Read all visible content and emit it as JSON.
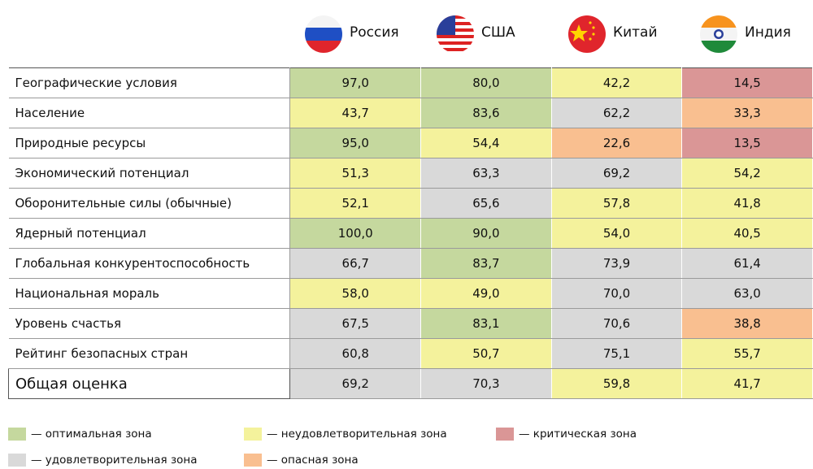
{
  "header": {
    "countries": [
      "Россия",
      "США",
      "Китай",
      "Индия"
    ]
  },
  "table": {
    "rows": [
      {
        "label": "Географические условия",
        "cells": [
          {
            "text": "97,0",
            "color": "#c5d89e"
          },
          {
            "text": "80,0",
            "color": "#c5d89e"
          },
          {
            "text": "42,2",
            "color": "#f4f29c"
          },
          {
            "text": "14,5",
            "color": "#da9696"
          }
        ]
      },
      {
        "label": "Население",
        "cells": [
          {
            "text": "43,7",
            "color": "#f4f29c"
          },
          {
            "text": "83,6",
            "color": "#c5d89e"
          },
          {
            "text": "62,2",
            "color": "#d9d9d9"
          },
          {
            "text": "33,3",
            "color": "#f9bf90"
          }
        ]
      },
      {
        "label": "Природные ресурсы",
        "cells": [
          {
            "text": "95,0",
            "color": "#c5d89e"
          },
          {
            "text": "54,4",
            "color": "#f4f29c"
          },
          {
            "text": "22,6",
            "color": "#f9bf90"
          },
          {
            "text": "13,5",
            "color": "#da9696"
          }
        ]
      },
      {
        "label": "Экономический потенциал",
        "cells": [
          {
            "text": "51,3",
            "color": "#f4f29c"
          },
          {
            "text": "63,3",
            "color": "#d9d9d9"
          },
          {
            "text": "69,2",
            "color": "#d9d9d9"
          },
          {
            "text": "54,2",
            "color": "#f4f29c"
          }
        ]
      },
      {
        "label": "Оборонительные силы (обычные)",
        "cells": [
          {
            "text": "52,1",
            "color": "#f4f29c"
          },
          {
            "text": "65,6",
            "color": "#d9d9d9"
          },
          {
            "text": "57,8",
            "color": "#f4f29c"
          },
          {
            "text": "41,8",
            "color": "#f4f29c"
          }
        ]
      },
      {
        "label": "Ядерный потенциал",
        "cells": [
          {
            "text": "100,0",
            "color": "#c5d89e"
          },
          {
            "text": "90,0",
            "color": "#c5d89e"
          },
          {
            "text": "54,0",
            "color": "#f4f29c"
          },
          {
            "text": "40,5",
            "color": "#f4f29c"
          }
        ]
      },
      {
        "label": "Глобальная конкурентоспособность",
        "cells": [
          {
            "text": "66,7",
            "color": "#d9d9d9"
          },
          {
            "text": "83,7",
            "color": "#c5d89e"
          },
          {
            "text": "73,9",
            "color": "#d9d9d9"
          },
          {
            "text": "61,4",
            "color": "#d9d9d9"
          }
        ]
      },
      {
        "label": "Национальная мораль",
        "cells": [
          {
            "text": "58,0",
            "color": "#f4f29c"
          },
          {
            "text": "49,0",
            "color": "#f4f29c"
          },
          {
            "text": "70,0",
            "color": "#d9d9d9"
          },
          {
            "text": "63,0",
            "color": "#d9d9d9"
          }
        ]
      },
      {
        "label": "Уровень счастья",
        "cells": [
          {
            "text": "67,5",
            "color": "#d9d9d9"
          },
          {
            "text": "83,1",
            "color": "#c5d89e"
          },
          {
            "text": "70,6",
            "color": "#d9d9d9"
          },
          {
            "text": "38,8",
            "color": "#f9bf90"
          }
        ]
      },
      {
        "label": "Рейтинг безопасных стран",
        "cells": [
          {
            "text": "60,8",
            "color": "#d9d9d9"
          },
          {
            "text": "50,7",
            "color": "#f4f29c"
          },
          {
            "text": "75,1",
            "color": "#d9d9d9"
          },
          {
            "text": "55,7",
            "color": "#f4f29c"
          }
        ]
      },
      {
        "label": "Общая оценка",
        "cells": [
          {
            "text": "69,2",
            "color": "#d9d9d9"
          },
          {
            "text": "70,3",
            "color": "#d9d9d9"
          },
          {
            "text": "59,8",
            "color": "#f4f29c"
          },
          {
            "text": "41,7",
            "color": "#f4f29c"
          }
        ]
      }
    ]
  },
  "legend": [
    {
      "text": "— оптимальная зона",
      "color": "#c5d89e"
    },
    {
      "text": "— неудовлетворительная зона",
      "color": "#f4f29c"
    },
    {
      "text": "— критическая зона",
      "color": "#da9696"
    },
    {
      "text": "— удовлетворительная зона",
      "color": "#d9d9d9"
    },
    {
      "text": "— опасная зона",
      "color": "#f9bf90"
    }
  ]
}
